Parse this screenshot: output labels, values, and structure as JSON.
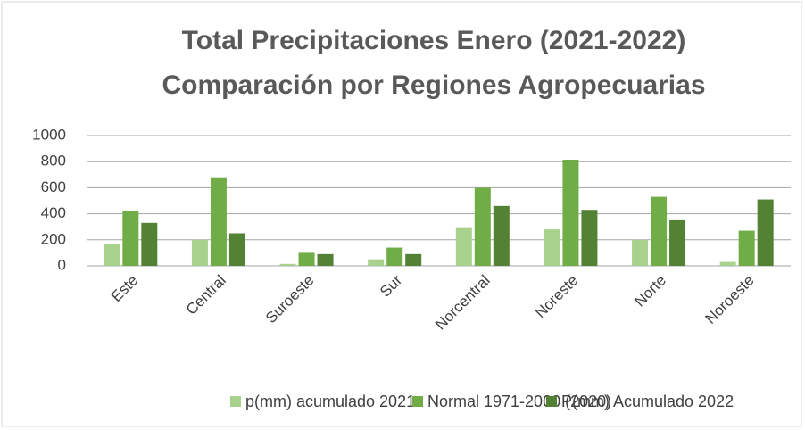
{
  "chart_data": {
    "type": "bar",
    "title": "Total Precipitaciones Enero (2021-2022)",
    "subtitle": "Comparación por Regiones Agropecuarias",
    "categories": [
      "Este",
      "Central",
      "Suroeste",
      "Sur",
      "Norcentral",
      "Noreste",
      "Norte",
      "Noroeste"
    ],
    "series": [
      {
        "name": "p(mm) acumulado 2021",
        "color": "#a9d18e",
        "values": [
          170,
          200,
          15,
          50,
          290,
          280,
          200,
          30
        ]
      },
      {
        "name": "Normal 1971-2000 (2020)",
        "color": "#70ad47",
        "values": [
          425,
          680,
          100,
          140,
          600,
          815,
          530,
          270
        ]
      },
      {
        "name": "P(mm) Acumulado 2022",
        "color": "#548235",
        "values": [
          330,
          250,
          90,
          90,
          460,
          430,
          350,
          510
        ]
      }
    ],
    "ylim": [
      0,
      1000
    ],
    "yticks": [
      0,
      200,
      400,
      600,
      800,
      1000
    ],
    "grid": true,
    "legend": "bottom"
  }
}
